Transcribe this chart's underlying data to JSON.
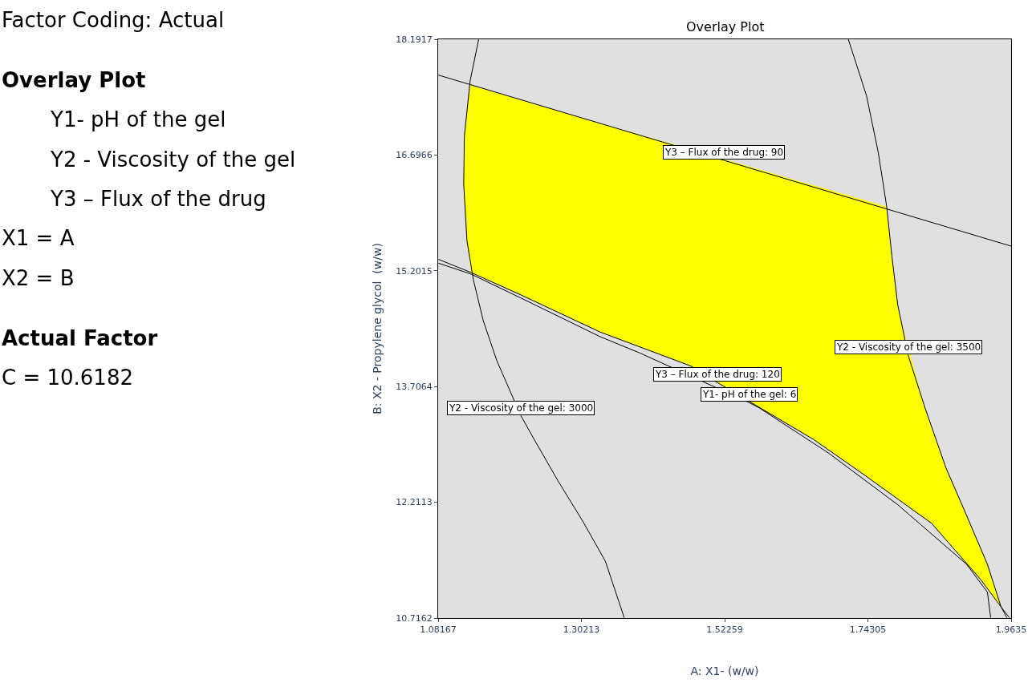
{
  "chart_data": {
    "type": "line",
    "title": "Overlay Plot",
    "xlabel": "A: X1- (w/w)",
    "ylabel": "B: X2 - Propylene glycol  (w/w)",
    "xlim": [
      1.08167,
      1.9635
    ],
    "ylim": [
      10.7162,
      18.1917
    ],
    "xticks": [
      1.08167,
      1.30213,
      1.52259,
      1.74305,
      1.9635
    ],
    "yticks": [
      10.7162,
      12.2113,
      13.7064,
      15.2015,
      16.6966,
      18.1917
    ],
    "grid": false,
    "marker": "none",
    "line_style": "solid",
    "series": [
      {
        "type": "area",
        "color": "#ffff00",
        "x": [
          1.131,
          1.772,
          1.78,
          1.789,
          1.794,
          1.831,
          1.863,
          1.895,
          1.927,
          1.948,
          1.916,
          1.841,
          1.735,
          1.66,
          1.511,
          1.471,
          1.331,
          1.209,
          1.132,
          1.126,
          1.121,
          1.122,
          1.131
        ],
        "values": [
          17.6,
          16.03,
          15.39,
          14.76,
          14.56,
          13.43,
          12.66,
          12.04,
          11.41,
          10.86,
          11.22,
          11.94,
          12.58,
          13.02,
          13.76,
          13.97,
          14.41,
          14.89,
          15.18,
          15.59,
          16.32,
          16.94,
          17.6
        ]
      },
      {
        "color": "#000000",
        "x": [
          1.08167,
          1.5208,
          1.9635
        ],
        "values": [
          17.73,
          16.63,
          15.52
        ]
      },
      {
        "color": "#000000",
        "x": [
          1.144,
          1.131,
          1.122,
          1.121,
          1.126,
          1.136,
          1.151,
          1.172,
          1.199,
          1.209,
          1.231,
          1.266,
          1.304,
          1.339,
          1.368
        ],
        "values": [
          18.19,
          17.66,
          16.94,
          16.32,
          15.59,
          15.08,
          14.56,
          14.04,
          13.52,
          13.33,
          13.0,
          12.49,
          11.97,
          11.45,
          10.72
        ]
      },
      {
        "color": "#000000",
        "x": [
          1.713,
          1.741,
          1.759,
          1.772,
          1.78,
          1.789,
          1.794,
          1.805,
          1.831,
          1.863,
          1.895,
          1.927,
          1.948,
          1.961
        ],
        "values": [
          18.19,
          17.46,
          16.73,
          16.03,
          15.39,
          14.76,
          14.56,
          14.11,
          13.43,
          12.66,
          12.04,
          11.41,
          10.86,
          10.72
        ]
      },
      {
        "color": "#000000",
        "x": [
          1.082,
          1.132,
          1.209,
          1.331,
          1.471,
          1.511,
          1.66,
          1.735,
          1.841,
          1.916,
          1.948,
          1.957
        ],
        "values": [
          15.35,
          15.18,
          14.89,
          14.41,
          13.97,
          13.76,
          13.02,
          12.58,
          11.94,
          11.22,
          10.86,
          10.72
        ]
      },
      {
        "color": "#000000",
        "x": [
          1.082,
          1.132,
          1.209,
          1.331,
          1.392,
          1.56,
          1.576,
          1.682,
          1.789,
          1.895,
          1.927,
          1.932
        ],
        "values": [
          15.3,
          15.16,
          14.85,
          14.35,
          14.14,
          13.5,
          13.43,
          12.85,
          12.18,
          11.41,
          11.05,
          10.72
        ]
      }
    ],
    "annotations": [
      "Factor Coding: Actual",
      "Overlay Plot",
      "Y1- pH of the gel",
      "Y2 - Viscosity of the gel",
      "Y3 – Flux of the drug",
      "X1 = A",
      "X2 = B",
      "Actual Factor",
      "C = 10.6182",
      {
        "text": "Y3 – Flux of the drug: 90",
        "x": 1.5208,
        "y": 16.63
      },
      {
        "text": "Y2 - Viscosity of the gel: 3500",
        "x": 1.805,
        "y": 14.11
      },
      {
        "text": "Y3 – Flux of the drug: 120",
        "x": 1.511,
        "y": 13.76
      },
      {
        "text": "Y1- pH of the gel: 6",
        "x": 1.56,
        "y": 13.5
      },
      {
        "text": "Y2 - Viscosity of the gel: 3000",
        "x": 1.209,
        "y": 13.33
      }
    ]
  }
}
